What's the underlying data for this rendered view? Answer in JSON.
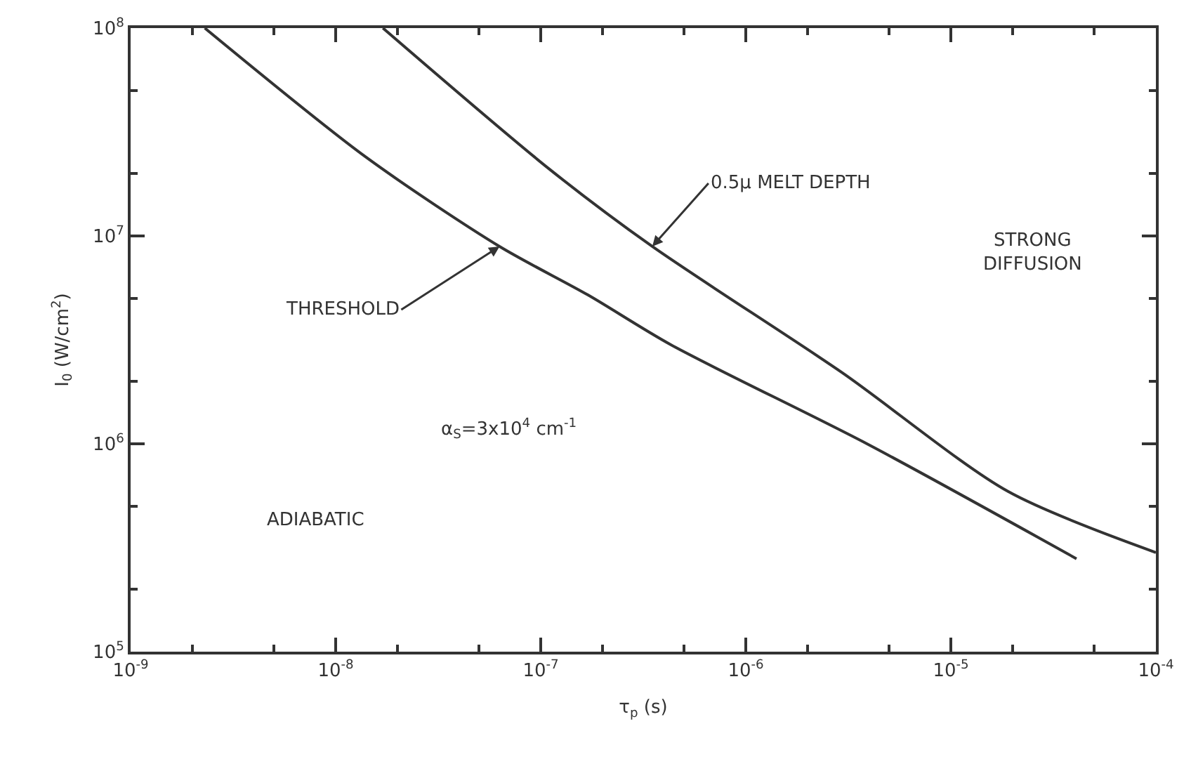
{
  "chart_data": {
    "type": "line",
    "xlabel": "τ$_{p}$ (s)",
    "ylabel": "I$_{0}$ (W/cm$^{2}$)",
    "log": "xy",
    "grid": false,
    "marker": "none",
    "line_style": "solid",
    "xlim": [
      1e-09,
      0.0001
    ],
    "ylim": [
      100000.0,
      100000000.0
    ],
    "xticks": [
      {
        "value": 1e-09,
        "label": "10$^{-9}$"
      },
      {
        "value": 1e-08,
        "label": "10$^{-8}$"
      },
      {
        "value": 1e-07,
        "label": "10$^{-7}$"
      },
      {
        "value": 1e-06,
        "label": "10$^{-6}$"
      },
      {
        "value": 1e-05,
        "label": "10$^{-5}$"
      },
      {
        "value": 0.0001,
        "label": "10$^{-4}$"
      }
    ],
    "yticks": [
      {
        "value": 100000.0,
        "label": "10$^{5}$"
      },
      {
        "value": 1000000.0,
        "label": "10$^{6}$"
      },
      {
        "value": 10000000.0,
        "label": "10$^{7}$"
      },
      {
        "value": 100000000.0,
        "label": "10$^{8}$"
      }
    ],
    "series": [
      {
        "color": "#333333",
        "x": [
          2.3e-09,
          1.4e-08,
          6.3e-08,
          1.7e-07,
          4.3e-07,
          3.9e-06,
          4.1e-05
        ],
        "values": [
          100000000.0,
          24000000.0,
          8900000.0,
          5200000.0,
          3000000.0,
          1000000.0,
          280000.0
        ]
      },
      {
        "color": "#333333",
        "x": [
          1.7e-08,
          1.1e-07,
          3.5e-07,
          2.95e-06,
          1.9e-05,
          0.0001
        ],
        "values": [
          100000000.0,
          21000000.0,
          8900000.0,
          2200000.0,
          590000.0,
          300000.0
        ]
      }
    ],
    "annotations": [
      {
        "text": "THRESHOLD",
        "x": 6.3e-08,
        "y": 8900000.0
      },
      {
        "text": "0.5μ MELT DEPTH",
        "x": 3.5e-07,
        "y": 8900000.0
      },
      "STRONG\nDIFFUSION",
      "α$_{S}$=3x10$^{4}$ cm$^{-1}$",
      "ADIABATIC"
    ]
  }
}
